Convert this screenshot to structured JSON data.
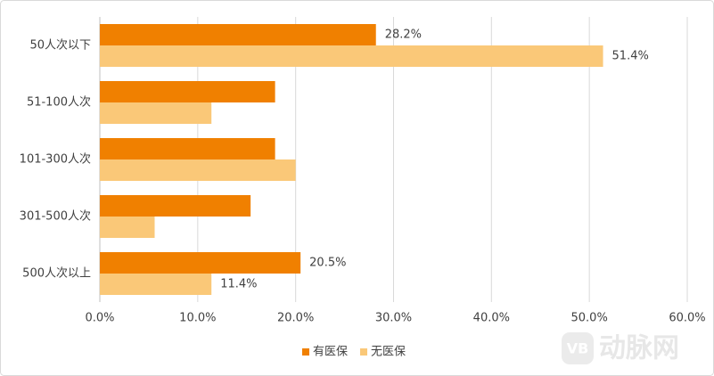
{
  "chart_data": {
    "type": "barh",
    "categories": [
      "50人次以下",
      "51-100人次",
      "101-300人次",
      "301-500人次",
      "500人次以上"
    ],
    "series": [
      {
        "name": "有医保",
        "color": "#f08000",
        "values": [
          28.2,
          17.9,
          17.9,
          15.4,
          20.5
        ],
        "value_labels": [
          "28.2%",
          null,
          null,
          null,
          "20.5%"
        ]
      },
      {
        "name": "无医保",
        "color": "#fac878",
        "values": [
          51.4,
          11.4,
          20.0,
          5.6,
          11.4
        ],
        "value_labels": [
          "51.4%",
          null,
          null,
          null,
          "11.4%"
        ]
      }
    ],
    "xlim": [
      0,
      60
    ],
    "xticks": [
      {
        "value": 0,
        "label": "0.0%"
      },
      {
        "value": 10,
        "label": "10.0%"
      },
      {
        "value": 20,
        "label": "20.0%"
      },
      {
        "value": 30,
        "label": "30.0%"
      },
      {
        "value": 40,
        "label": "40.0%"
      },
      {
        "value": 50,
        "label": "50.0%"
      },
      {
        "value": 60,
        "label": "60.0%"
      }
    ],
    "grid": true,
    "legend": "bottom",
    "watermark_logo": "VB",
    "watermark": "动脉网"
  }
}
